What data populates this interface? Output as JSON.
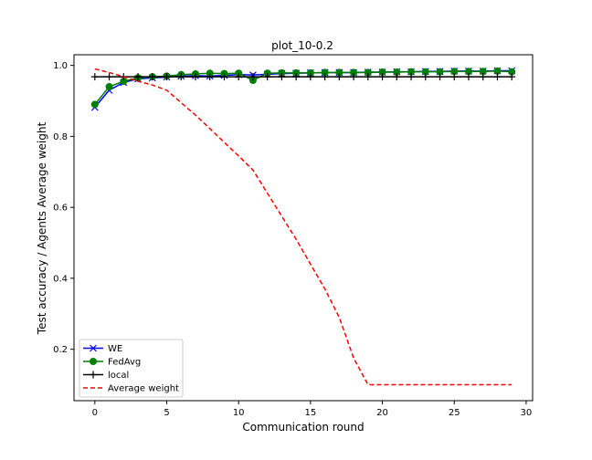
{
  "chart_data": {
    "type": "line",
    "title": "plot_10-0.2",
    "xlabel": "Communication round",
    "ylabel": "Test accuracy / Agents Average weight",
    "xlim": [
      -1.45,
      30.45
    ],
    "ylim": [
      0.055,
      1.03
    ],
    "xticks": [
      0,
      5,
      10,
      15,
      20,
      25,
      30
    ],
    "yticks": [
      0.2,
      0.4,
      0.6,
      0.8,
      1.0
    ],
    "xtick_labels": [
      "0",
      "5",
      "10",
      "15",
      "20",
      "25",
      "30"
    ],
    "ytick_labels": [
      "0.2",
      "0.4",
      "0.6",
      "0.8",
      "1.0"
    ],
    "grid": false,
    "legend_position": "lower-left",
    "series": [
      {
        "name": "WE",
        "color": "#0000ff",
        "marker": "x",
        "line": "solid",
        "x": [
          0,
          1,
          2,
          3,
          4,
          5,
          6,
          7,
          8,
          9,
          10,
          11,
          12,
          13,
          14,
          15,
          16,
          17,
          18,
          19,
          20,
          21,
          22,
          23,
          24,
          25,
          26,
          27,
          28,
          29
        ],
        "values": [
          0.882,
          0.93,
          0.952,
          0.962,
          0.965,
          0.967,
          0.97,
          0.971,
          0.97,
          0.972,
          0.974,
          0.973,
          0.975,
          0.977,
          0.978,
          0.979,
          0.98,
          0.98,
          0.98,
          0.981,
          0.981,
          0.982,
          0.982,
          0.983,
          0.983,
          0.984,
          0.984,
          0.984,
          0.985,
          0.985
        ]
      },
      {
        "name": "FedAvg",
        "color": "#008000",
        "marker": "o",
        "line": "solid",
        "x": [
          0,
          1,
          2,
          3,
          4,
          5,
          6,
          7,
          8,
          9,
          10,
          11,
          12,
          13,
          14,
          15,
          16,
          17,
          18,
          19,
          20,
          21,
          22,
          23,
          24,
          25,
          26,
          27,
          28,
          29
        ],
        "values": [
          0.89,
          0.94,
          0.955,
          0.965,
          0.968,
          0.97,
          0.974,
          0.976,
          0.978,
          0.977,
          0.978,
          0.958,
          0.978,
          0.979,
          0.979,
          0.979,
          0.98,
          0.98,
          0.98,
          0.98,
          0.981,
          0.981,
          0.982,
          0.982,
          0.982,
          0.983,
          0.983,
          0.983,
          0.984,
          0.982
        ]
      },
      {
        "name": "local",
        "color": "#000000",
        "marker": "+",
        "line": "solid",
        "x": [
          0,
          1,
          2,
          3,
          4,
          5,
          6,
          7,
          8,
          9,
          10,
          11,
          12,
          13,
          14,
          15,
          16,
          17,
          18,
          19,
          20,
          21,
          22,
          23,
          24,
          25,
          26,
          27,
          28,
          29
        ],
        "values": [
          0.968,
          0.968,
          0.968,
          0.968,
          0.968,
          0.968,
          0.968,
          0.968,
          0.968,
          0.968,
          0.968,
          0.968,
          0.968,
          0.968,
          0.968,
          0.968,
          0.968,
          0.968,
          0.968,
          0.968,
          0.968,
          0.968,
          0.968,
          0.968,
          0.968,
          0.968,
          0.968,
          0.968,
          0.968,
          0.968
        ]
      },
      {
        "name": "Average weight",
        "color": "#ff0000",
        "marker": "none",
        "line": "dashed",
        "x": [
          0,
          1,
          2,
          3,
          4,
          5,
          6,
          7,
          8,
          9,
          10,
          11,
          12,
          13,
          14,
          15,
          16,
          17,
          18,
          19,
          20,
          21,
          22,
          23,
          24,
          25,
          26,
          27,
          28,
          29
        ],
        "values": [
          0.99,
          0.98,
          0.968,
          0.955,
          0.945,
          0.93,
          0.895,
          0.86,
          0.822,
          0.783,
          0.745,
          0.705,
          0.64,
          0.575,
          0.51,
          0.44,
          0.37,
          0.29,
          0.175,
          0.1,
          0.1,
          0.1,
          0.1,
          0.1,
          0.1,
          0.1,
          0.1,
          0.1,
          0.1,
          0.1
        ]
      }
    ]
  }
}
